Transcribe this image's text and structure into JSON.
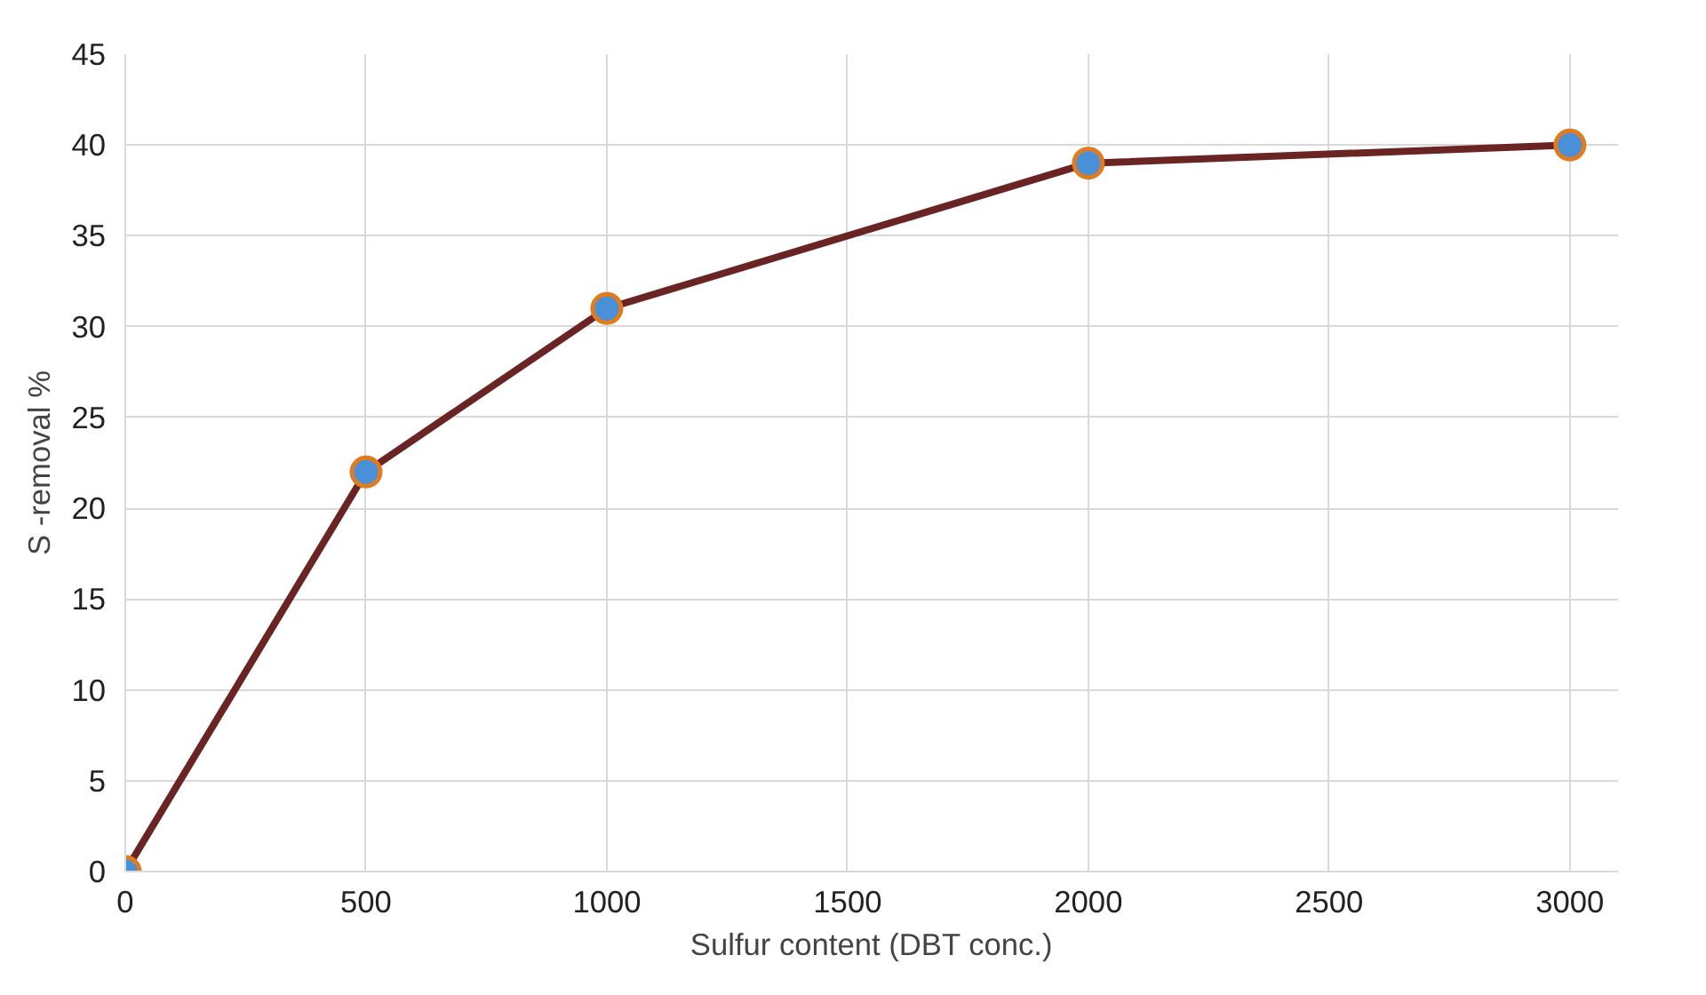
{
  "chart_data": {
    "type": "line",
    "xlabel": "Sulfur content (DBT conc.)",
    "ylabel": "S -removal %",
    "x": [
      0,
      500,
      1000,
      2000,
      3000
    ],
    "series": [
      {
        "color": "#6b2424",
        "values": [
          0,
          22,
          31,
          39,
          40
        ]
      }
    ],
    "xlim": [
      0,
      3100
    ],
    "xticks": [
      0,
      500,
      1000,
      1500,
      2000,
      2500,
      3000
    ],
    "ylim": [
      0,
      45
    ],
    "yticks": [
      0,
      5,
      10,
      15,
      20,
      25,
      30,
      35,
      40,
      45
    ],
    "grid": true,
    "marker": "circle",
    "line_style": "solid"
  }
}
